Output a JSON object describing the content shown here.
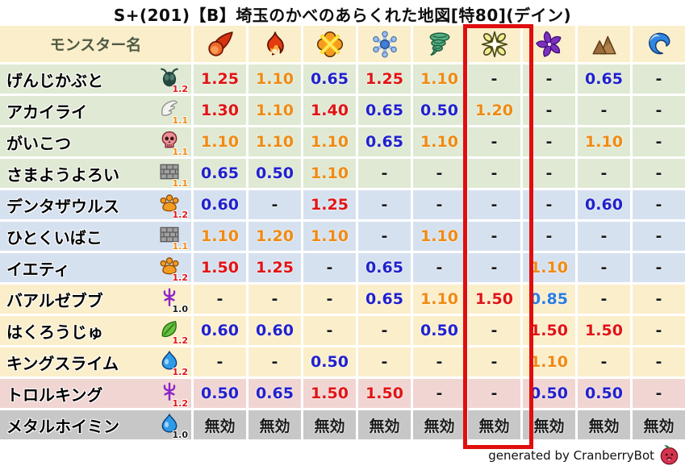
{
  "title": "S+(201)【B】埼玉のかべのあらくれた地図[特80](デイン)",
  "footer": {
    "credit_text": "generated by CranberryBot",
    "icon": "cranberry-icon"
  },
  "table": {
    "name_header": "モンスター名",
    "element_columns": [
      {
        "icon": "fireball-icon"
      },
      {
        "icon": "flame-icon"
      },
      {
        "icon": "explosion-icon"
      },
      {
        "icon": "snowflake-icon"
      },
      {
        "icon": "tornado-icon"
      },
      {
        "icon": "starburst-icon",
        "highlighted": true
      },
      {
        "icon": "pinwheel-icon"
      },
      {
        "icon": "mountain-icon"
      },
      {
        "icon": "wave-icon"
      }
    ],
    "highlight_column_index": 5,
    "rows": [
      {
        "name": "げんじかぶと",
        "family_icon": "bug-icon",
        "modifier": "1.2",
        "modifier_color": "red",
        "row_color": "green",
        "values": [
          {
            "t": "1.25",
            "c": "red"
          },
          {
            "t": "1.10",
            "c": "orange"
          },
          {
            "t": "0.65",
            "c": "blue"
          },
          {
            "t": "1.25",
            "c": "red"
          },
          {
            "t": "1.10",
            "c": "orange"
          },
          {
            "t": "-",
            "c": "black"
          },
          {
            "t": "-",
            "c": "black"
          },
          {
            "t": "0.65",
            "c": "blue"
          },
          {
            "t": "-",
            "c": "black"
          }
        ]
      },
      {
        "name": "アカイライ",
        "family_icon": "wing-icon",
        "modifier": "1.1",
        "modifier_color": "orange",
        "row_color": "green",
        "values": [
          {
            "t": "1.30",
            "c": "red"
          },
          {
            "t": "1.10",
            "c": "orange"
          },
          {
            "t": "1.40",
            "c": "red"
          },
          {
            "t": "0.65",
            "c": "blue"
          },
          {
            "t": "0.50",
            "c": "blue"
          },
          {
            "t": "1.20",
            "c": "orange"
          },
          {
            "t": "-",
            "c": "black"
          },
          {
            "t": "-",
            "c": "black"
          },
          {
            "t": "-",
            "c": "black"
          }
        ]
      },
      {
        "name": "がいこつ",
        "family_icon": "skull-icon",
        "modifier": "1.1",
        "modifier_color": "orange",
        "row_color": "green",
        "values": [
          {
            "t": "1.10",
            "c": "orange"
          },
          {
            "t": "1.10",
            "c": "orange"
          },
          {
            "t": "1.10",
            "c": "orange"
          },
          {
            "t": "0.65",
            "c": "blue"
          },
          {
            "t": "1.10",
            "c": "orange"
          },
          {
            "t": "-",
            "c": "black"
          },
          {
            "t": "-",
            "c": "black"
          },
          {
            "t": "1.10",
            "c": "orange"
          },
          {
            "t": "-",
            "c": "black"
          }
        ]
      },
      {
        "name": "さまようよろい",
        "family_icon": "brick-icon",
        "modifier": "1.1",
        "modifier_color": "orange",
        "row_color": "green",
        "values": [
          {
            "t": "0.65",
            "c": "blue"
          },
          {
            "t": "0.50",
            "c": "blue"
          },
          {
            "t": "1.10",
            "c": "orange"
          },
          {
            "t": "-",
            "c": "black"
          },
          {
            "t": "-",
            "c": "black"
          },
          {
            "t": "-",
            "c": "black"
          },
          {
            "t": "-",
            "c": "black"
          },
          {
            "t": "-",
            "c": "black"
          },
          {
            "t": "-",
            "c": "black"
          }
        ]
      },
      {
        "name": "デンタザウルス",
        "family_icon": "paw-icon",
        "modifier": "1.2",
        "modifier_color": "red",
        "row_color": "blue",
        "values": [
          {
            "t": "0.60",
            "c": "blue"
          },
          {
            "t": "-",
            "c": "black"
          },
          {
            "t": "1.25",
            "c": "red"
          },
          {
            "t": "-",
            "c": "black"
          },
          {
            "t": "-",
            "c": "black"
          },
          {
            "t": "-",
            "c": "black"
          },
          {
            "t": "-",
            "c": "black"
          },
          {
            "t": "0.60",
            "c": "blue"
          },
          {
            "t": "-",
            "c": "black"
          }
        ]
      },
      {
        "name": "ひとくいばこ",
        "family_icon": "brick-icon",
        "modifier": "1.1",
        "modifier_color": "orange",
        "row_color": "blue",
        "values": [
          {
            "t": "1.10",
            "c": "orange"
          },
          {
            "t": "1.20",
            "c": "orange"
          },
          {
            "t": "1.10",
            "c": "orange"
          },
          {
            "t": "-",
            "c": "black"
          },
          {
            "t": "1.10",
            "c": "orange"
          },
          {
            "t": "-",
            "c": "black"
          },
          {
            "t": "-",
            "c": "black"
          },
          {
            "t": "-",
            "c": "black"
          },
          {
            "t": "-",
            "c": "black"
          }
        ]
      },
      {
        "name": "イエティ",
        "family_icon": "paw-icon",
        "modifier": "1.2",
        "modifier_color": "red",
        "row_color": "blue",
        "values": [
          {
            "t": "1.50",
            "c": "red"
          },
          {
            "t": "1.25",
            "c": "red"
          },
          {
            "t": "-",
            "c": "black"
          },
          {
            "t": "0.65",
            "c": "blue"
          },
          {
            "t": "-",
            "c": "black"
          },
          {
            "t": "-",
            "c": "black"
          },
          {
            "t": "1.10",
            "c": "orange"
          },
          {
            "t": "-",
            "c": "black"
          },
          {
            "t": "-",
            "c": "black"
          }
        ]
      },
      {
        "name": "バアルゼブブ",
        "family_icon": "demon-icon",
        "modifier": "1.0",
        "modifier_color": "black",
        "row_color": "cream",
        "values": [
          {
            "t": "-",
            "c": "black"
          },
          {
            "t": "-",
            "c": "black"
          },
          {
            "t": "-",
            "c": "black"
          },
          {
            "t": "0.65",
            "c": "blue"
          },
          {
            "t": "1.10",
            "c": "orange"
          },
          {
            "t": "1.50",
            "c": "red"
          },
          {
            "t": "0.85",
            "c": "lightblue"
          },
          {
            "t": "-",
            "c": "black"
          },
          {
            "t": "-",
            "c": "black"
          }
        ]
      },
      {
        "name": "はくろうじゅ",
        "family_icon": "leaf-icon",
        "modifier": "1.2",
        "modifier_color": "red",
        "row_color": "cream",
        "values": [
          {
            "t": "0.60",
            "c": "blue"
          },
          {
            "t": "0.60",
            "c": "blue"
          },
          {
            "t": "-",
            "c": "black"
          },
          {
            "t": "-",
            "c": "black"
          },
          {
            "t": "0.50",
            "c": "blue"
          },
          {
            "t": "-",
            "c": "black"
          },
          {
            "t": "1.50",
            "c": "red"
          },
          {
            "t": "1.50",
            "c": "red"
          },
          {
            "t": "-",
            "c": "black"
          }
        ]
      },
      {
        "name": "キングスライム",
        "family_icon": "slime-icon",
        "modifier": "1.2",
        "modifier_color": "red",
        "row_color": "cream",
        "values": [
          {
            "t": "-",
            "c": "black"
          },
          {
            "t": "-",
            "c": "black"
          },
          {
            "t": "0.50",
            "c": "blue"
          },
          {
            "t": "-",
            "c": "black"
          },
          {
            "t": "-",
            "c": "black"
          },
          {
            "t": "-",
            "c": "black"
          },
          {
            "t": "1.10",
            "c": "orange"
          },
          {
            "t": "-",
            "c": "black"
          },
          {
            "t": "-",
            "c": "black"
          }
        ]
      },
      {
        "name": "トロルキング",
        "family_icon": "demon-icon",
        "modifier": "1.2",
        "modifier_color": "red",
        "row_color": "pink",
        "values": [
          {
            "t": "0.50",
            "c": "blue"
          },
          {
            "t": "0.65",
            "c": "blue"
          },
          {
            "t": "1.50",
            "c": "red"
          },
          {
            "t": "1.50",
            "c": "red"
          },
          {
            "t": "-",
            "c": "black"
          },
          {
            "t": "-",
            "c": "black"
          },
          {
            "t": "0.50",
            "c": "blue"
          },
          {
            "t": "0.50",
            "c": "blue"
          },
          {
            "t": "-",
            "c": "black"
          }
        ]
      },
      {
        "name": "メタルホイミン",
        "family_icon": "slime-icon",
        "modifier": "1.0",
        "modifier_color": "black",
        "row_color": "gray",
        "values": [
          {
            "t": "無効",
            "c": "black"
          },
          {
            "t": "無効",
            "c": "black"
          },
          {
            "t": "無効",
            "c": "black"
          },
          {
            "t": "無効",
            "c": "black"
          },
          {
            "t": "無効",
            "c": "black"
          },
          {
            "t": "無効",
            "c": "black"
          },
          {
            "t": "無効",
            "c": "black"
          },
          {
            "t": "無効",
            "c": "black"
          },
          {
            "t": "無効",
            "c": "black"
          }
        ]
      }
    ]
  },
  "palette": {
    "header_bg": "#fbeecb",
    "header_text": "#4e5a44",
    "row_green": "#dfe9d3",
    "row_blue": "#d6e1f0",
    "row_cream": "#fbeecb",
    "row_pink": "#f1d5d3",
    "row_gray": "#c7c7c7",
    "val_red": "#e11414",
    "val_orange": "#f08a12",
    "val_blue": "#2121cd",
    "val_lightblue": "#2b7de0",
    "val_black": "#1a1a1a",
    "highlight_red": "#e00e0e"
  }
}
